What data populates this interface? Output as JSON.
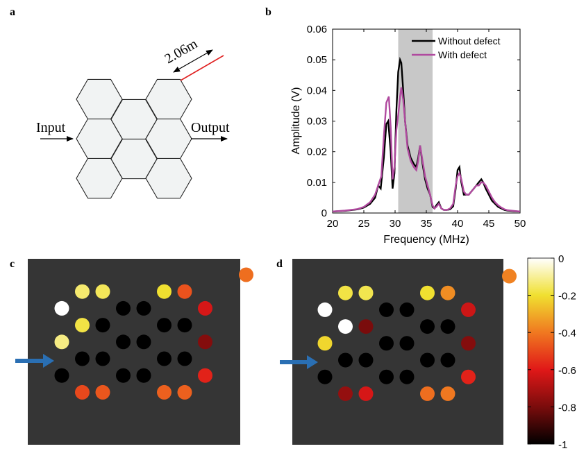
{
  "panel_labels": {
    "a": "a",
    "b": "b",
    "c": "c",
    "d": "d"
  },
  "diagram": {
    "input_label": "Input",
    "output_label": "Output",
    "length_label": "2.06m"
  },
  "colors": {
    "black_line": "#000000",
    "magenta_line": "#b04a9f",
    "band": "#c8c8c8",
    "dark_bg": "#353535",
    "arrow": "#2a6fb3",
    "defect_wire": "#e02020",
    "hex_fill": "#f1f3f3"
  },
  "chart_data": [
    {
      "type": "line",
      "xlabel": "Frequency (MHz)",
      "ylabel": "Amplitude (V)",
      "xlim": [
        20,
        50
      ],
      "ylim": [
        0,
        0.06
      ],
      "xticks": [
        "20",
        "25",
        "30",
        "35",
        "40",
        "45",
        "50"
      ],
      "yticks": [
        "0",
        "0.01",
        "0.02",
        "0.03",
        "0.04",
        "0.05",
        "0.06"
      ],
      "shaded_band": [
        30.5,
        36
      ],
      "legend_position": "top-right",
      "series": [
        {
          "name": "Without defect",
          "color": "#000000",
          "x": [
            20,
            22,
            24,
            25,
            26,
            26.8,
            27.3,
            27.7,
            28.2,
            28.6,
            28.9,
            29.3,
            29.6,
            29.9,
            30.2,
            30.5,
            30.8,
            31.0,
            31.3,
            31.6,
            32.0,
            32.5,
            33.0,
            33.4,
            33.7,
            34.0,
            34.4,
            34.8,
            35.2,
            35.6,
            36.0,
            36.3,
            36.6,
            37.0,
            37.4,
            37.8,
            38.3,
            38.8,
            39.3,
            39.7,
            40.0,
            40.3,
            40.6,
            41.0,
            41.4,
            41.8,
            42.2,
            42.6,
            43.0,
            43.4,
            43.8,
            44.1,
            44.5,
            45.0,
            45.5,
            46.0,
            46.5,
            47.0,
            47.5,
            48.0,
            49.0,
            50.0
          ],
          "y": [
            0.0005,
            0.0007,
            0.0012,
            0.0018,
            0.003,
            0.005,
            0.009,
            0.008,
            0.018,
            0.029,
            0.03,
            0.02,
            0.008,
            0.013,
            0.033,
            0.046,
            0.05,
            0.049,
            0.04,
            0.03,
            0.022,
            0.018,
            0.016,
            0.015,
            0.018,
            0.022,
            0.016,
            0.011,
            0.008,
            0.006,
            0.002,
            0.0015,
            0.0025,
            0.0035,
            0.0015,
            0.001,
            0.001,
            0.0012,
            0.0022,
            0.008,
            0.014,
            0.015,
            0.01,
            0.006,
            0.006,
            0.006,
            0.007,
            0.008,
            0.009,
            0.01,
            0.011,
            0.01,
            0.008,
            0.006,
            0.004,
            0.003,
            0.002,
            0.0015,
            0.001,
            0.0008,
            0.0006,
            0.0005
          ]
        },
        {
          "name": "With defect",
          "color": "#b04a9f",
          "x": [
            20,
            22,
            24,
            25,
            26,
            26.8,
            27.3,
            27.8,
            28.2,
            28.6,
            29.0,
            29.3,
            29.6,
            29.9,
            30.2,
            30.5,
            30.8,
            31.0,
            31.3,
            31.6,
            32.0,
            32.5,
            33.0,
            33.4,
            33.7,
            34.0,
            34.4,
            34.8,
            35.2,
            35.6,
            36.0,
            36.3,
            36.6,
            37.0,
            37.4,
            37.8,
            38.3,
            38.8,
            39.3,
            39.7,
            40.0,
            40.3,
            40.6,
            41.0,
            41.4,
            41.8,
            42.2,
            42.6,
            43.0,
            43.4,
            43.8,
            44.1,
            44.5,
            45.0,
            45.5,
            46.0,
            46.5,
            47.0,
            47.5,
            48.0,
            49.0,
            50.0
          ],
          "y": [
            0.0005,
            0.0008,
            0.0013,
            0.002,
            0.0035,
            0.006,
            0.009,
            0.012,
            0.025,
            0.036,
            0.038,
            0.028,
            0.011,
            0.015,
            0.027,
            0.032,
            0.038,
            0.041,
            0.037,
            0.03,
            0.021,
            0.017,
            0.015,
            0.014,
            0.017,
            0.022,
            0.017,
            0.012,
            0.009,
            0.006,
            0.0025,
            0.0015,
            0.002,
            0.003,
            0.0015,
            0.001,
            0.001,
            0.0015,
            0.003,
            0.009,
            0.012,
            0.013,
            0.011,
            0.007,
            0.006,
            0.006,
            0.007,
            0.008,
            0.009,
            0.009,
            0.01,
            0.01,
            0.009,
            0.007,
            0.005,
            0.0035,
            0.0025,
            0.0018,
            0.0012,
            0.0009,
            0.0007,
            0.0005
          ]
        }
      ]
    },
    {
      "type": "heatmap",
      "panel": "c",
      "colorbar_min": -1,
      "colorbar_max": 0,
      "points": [
        {
          "col": 9,
          "row": 0,
          "v": -0.42
        },
        {
          "col": 1,
          "row": 1,
          "v": -0.14
        },
        {
          "col": 2,
          "row": 1,
          "v": -0.16
        },
        {
          "col": 5,
          "row": 1,
          "v": -0.2
        },
        {
          "col": 6,
          "row": 1,
          "v": -0.48
        },
        {
          "col": 0,
          "row": 2,
          "v": 0.0
        },
        {
          "col": 3,
          "row": 2,
          "v": -1.0
        },
        {
          "col": 4,
          "row": 2,
          "v": -1.0
        },
        {
          "col": 7,
          "row": 2,
          "v": -0.62
        },
        {
          "col": 1,
          "row": 3,
          "v": -0.18
        },
        {
          "col": 2,
          "row": 3,
          "v": -1.0
        },
        {
          "col": 5,
          "row": 3,
          "v": -1.0
        },
        {
          "col": 6,
          "row": 3,
          "v": -1.0
        },
        {
          "col": 0,
          "row": 4,
          "v": -0.12
        },
        {
          "col": 3,
          "row": 4,
          "v": -1.0
        },
        {
          "col": 4,
          "row": 4,
          "v": -1.0
        },
        {
          "col": 7,
          "row": 4,
          "v": -0.78
        },
        {
          "col": 1,
          "row": 5,
          "v": -1.0
        },
        {
          "col": 2,
          "row": 5,
          "v": -1.0
        },
        {
          "col": 5,
          "row": 5,
          "v": -1.0
        },
        {
          "col": 6,
          "row": 5,
          "v": -1.0
        },
        {
          "col": 0,
          "row": 6,
          "v": -1.0
        },
        {
          "col": 3,
          "row": 6,
          "v": -1.0
        },
        {
          "col": 4,
          "row": 6,
          "v": -1.0
        },
        {
          "col": 7,
          "row": 6,
          "v": -0.58
        },
        {
          "col": 1,
          "row": 7,
          "v": -0.5
        },
        {
          "col": 2,
          "row": 7,
          "v": -0.47
        },
        {
          "col": 5,
          "row": 7,
          "v": -0.45
        },
        {
          "col": 6,
          "row": 7,
          "v": -0.45
        }
      ],
      "input_arrow_row": 4
    },
    {
      "type": "heatmap",
      "panel": "d",
      "colorbar_min": -1,
      "colorbar_max": 0,
      "points": [
        {
          "col": 9,
          "row": 0,
          "v": -0.38
        },
        {
          "col": 1,
          "row": 1,
          "v": -0.18
        },
        {
          "col": 2,
          "row": 1,
          "v": -0.17
        },
        {
          "col": 5,
          "row": 1,
          "v": -0.2
        },
        {
          "col": 6,
          "row": 1,
          "v": -0.36
        },
        {
          "col": 0,
          "row": 2,
          "v": 0.0
        },
        {
          "col": 3,
          "row": 2,
          "v": -1.0
        },
        {
          "col": 4,
          "row": 2,
          "v": -1.0
        },
        {
          "col": 7,
          "row": 2,
          "v": -0.64
        },
        {
          "col": 1,
          "row": 3,
          "v": 0.0
        },
        {
          "col": 2,
          "row": 3,
          "v": -0.8
        },
        {
          "col": 5,
          "row": 3,
          "v": -1.0
        },
        {
          "col": 6,
          "row": 3,
          "v": -1.0
        },
        {
          "col": 0,
          "row": 4,
          "v": -0.22
        },
        {
          "col": 3,
          "row": 4,
          "v": -1.0
        },
        {
          "col": 4,
          "row": 4,
          "v": -1.0
        },
        {
          "col": 7,
          "row": 4,
          "v": -0.78
        },
        {
          "col": 1,
          "row": 5,
          "v": -1.0
        },
        {
          "col": 2,
          "row": 5,
          "v": -1.0
        },
        {
          "col": 5,
          "row": 5,
          "v": -1.0
        },
        {
          "col": 6,
          "row": 5,
          "v": -1.0
        },
        {
          "col": 0,
          "row": 6,
          "v": -1.0
        },
        {
          "col": 3,
          "row": 6,
          "v": -1.0
        },
        {
          "col": 4,
          "row": 6,
          "v": -1.0
        },
        {
          "col": 7,
          "row": 6,
          "v": -0.58
        },
        {
          "col": 1,
          "row": 7,
          "v": -0.75
        },
        {
          "col": 2,
          "row": 7,
          "v": -0.62
        },
        {
          "col": 5,
          "row": 7,
          "v": -0.42
        },
        {
          "col": 6,
          "row": 7,
          "v": -0.4
        }
      ],
      "input_arrow_row": 4
    },
    {
      "type": "colorbar",
      "ticks": [
        "0",
        "-0.2",
        "-0.4",
        "-0.6",
        "-0.8",
        "-1"
      ],
      "tick_values": [
        0,
        -0.2,
        -0.4,
        -0.6,
        -0.8,
        -1
      ],
      "range": [
        -1,
        0
      ],
      "stops": [
        "#000000",
        "#7a0c0c",
        "#e01818",
        "#f07820",
        "#f0e030",
        "#ffffff"
      ]
    }
  ]
}
